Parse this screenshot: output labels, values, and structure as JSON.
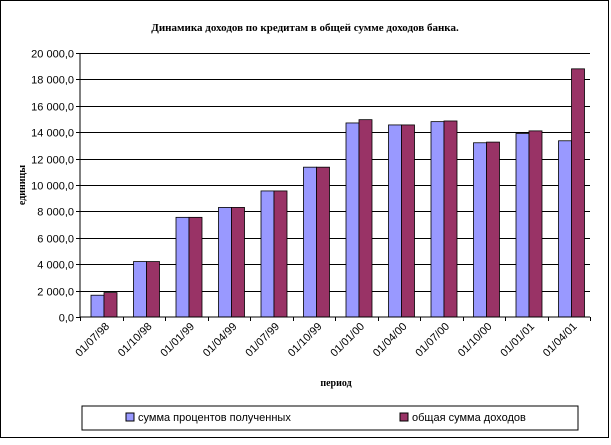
{
  "chart_data": {
    "type": "bar",
    "title": "Динамика доходов по кредитам в общей сумме доходов банка.",
    "xlabel": "период",
    "ylabel": "единицы",
    "ylim": [
      0,
      20000
    ],
    "ytick_step": 2000,
    "ytick_labels": [
      "0,0",
      "2 000,0",
      "4 000,0",
      "6 000,0",
      "8 000,0",
      "10 000,0",
      "12 000,0",
      "14 000,0",
      "16 000,0",
      "18 000,0",
      "20 000,0"
    ],
    "grid": "horizontal",
    "legend_position": "bottom",
    "categories": [
      "01/07/98",
      "01/10/98",
      "01/01/99",
      "01/04/99",
      "01/07/99",
      "01/10/99",
      "01/01/00",
      "01/04/00",
      "01/07/00",
      "01/10/00",
      "01/01/01",
      "01/04/01"
    ],
    "series": [
      {
        "name": "сумма процентов полученных",
        "color": "#9999ff",
        "values": [
          1650,
          4200,
          7550,
          8300,
          9550,
          11350,
          14700,
          14550,
          14800,
          13200,
          13900,
          13350
        ]
      },
      {
        "name": "общая сумма доходов",
        "color": "#993366",
        "values": [
          1850,
          4200,
          7550,
          8300,
          9550,
          11350,
          14950,
          14550,
          14850,
          13250,
          14100,
          18800
        ]
      }
    ]
  }
}
